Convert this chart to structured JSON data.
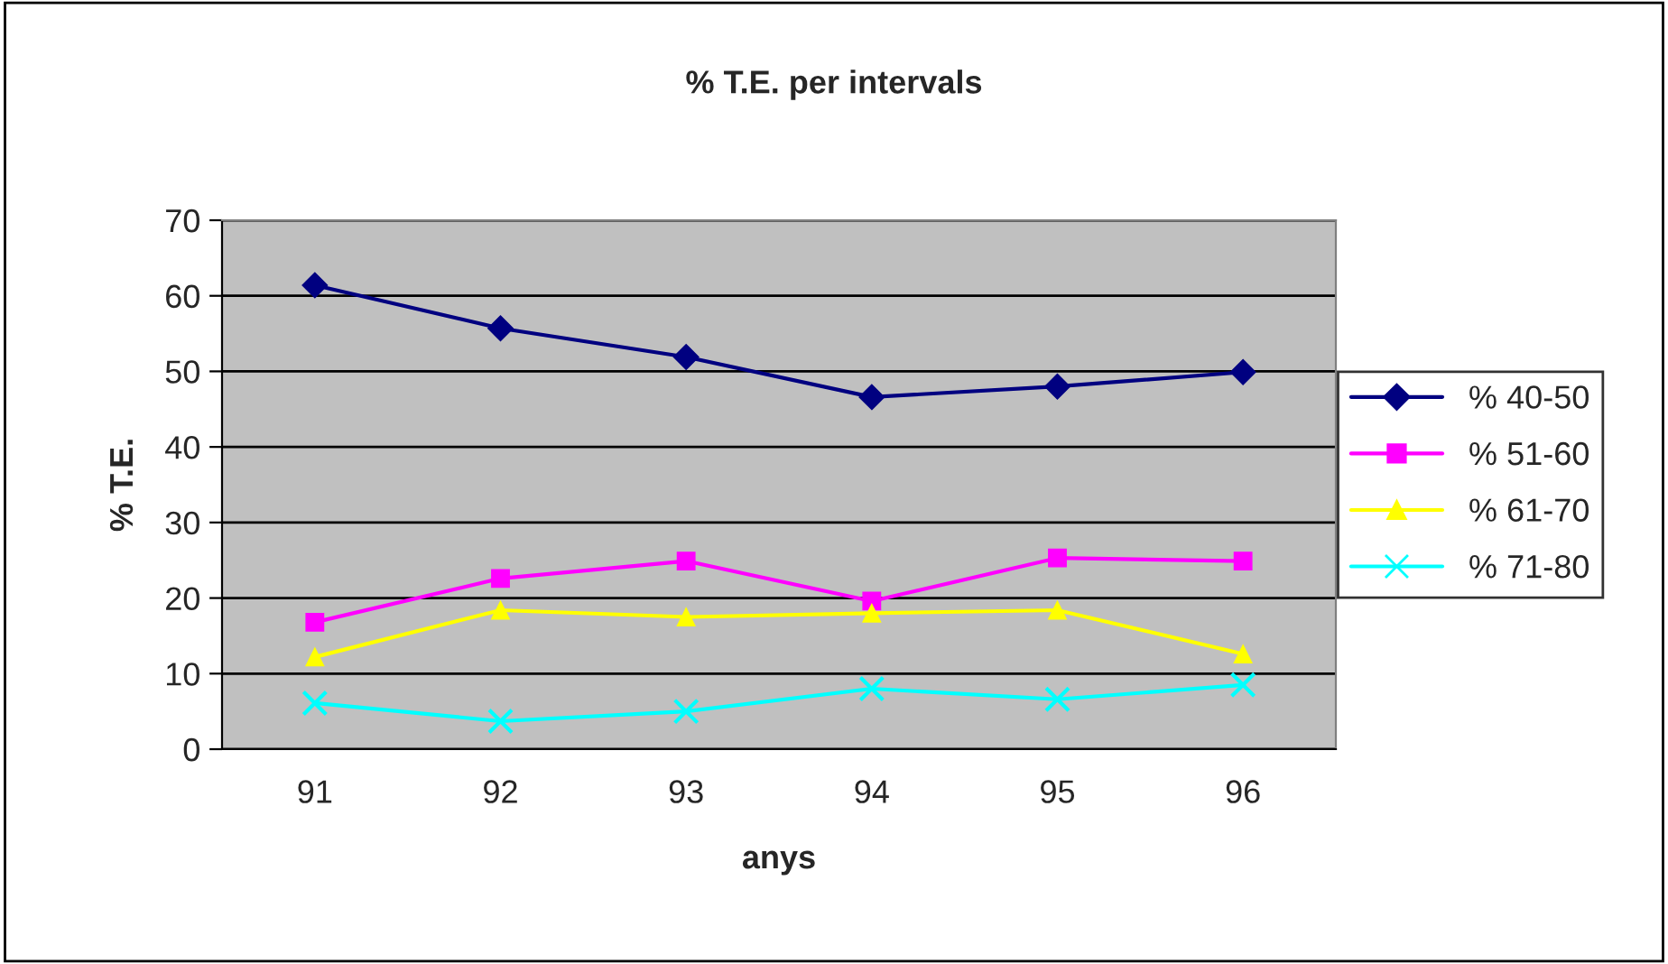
{
  "chart_data": {
    "type": "line",
    "title": "% T.E. per intervals",
    "xlabel": "anys",
    "ylabel": "% T.E.",
    "categories": [
      "91",
      "92",
      "93",
      "94",
      "95",
      "96"
    ],
    "series": [
      {
        "name": "% 40-50",
        "color": "#000080",
        "marker": "diamond",
        "values": [
          61.4,
          55.7,
          51.9,
          46.6,
          48.0,
          49.9
        ]
      },
      {
        "name": "% 51-60",
        "color": "#ff00ff",
        "marker": "square",
        "values": [
          16.8,
          22.6,
          24.9,
          19.6,
          25.3,
          24.9
        ]
      },
      {
        "name": "% 61-70",
        "color": "#ffff00",
        "marker": "triangle",
        "values": [
          12.2,
          18.4,
          17.5,
          18.0,
          18.4,
          12.6
        ]
      },
      {
        "name": "% 71-80",
        "color": "#00ffff",
        "marker": "cross",
        "values": [
          6.1,
          3.7,
          5.0,
          8.0,
          6.6,
          8.5
        ]
      }
    ],
    "ylim": [
      0,
      70
    ],
    "yticks": [
      0,
      10,
      20,
      30,
      40,
      50,
      60,
      70
    ],
    "grid": "y",
    "legend": "right"
  }
}
